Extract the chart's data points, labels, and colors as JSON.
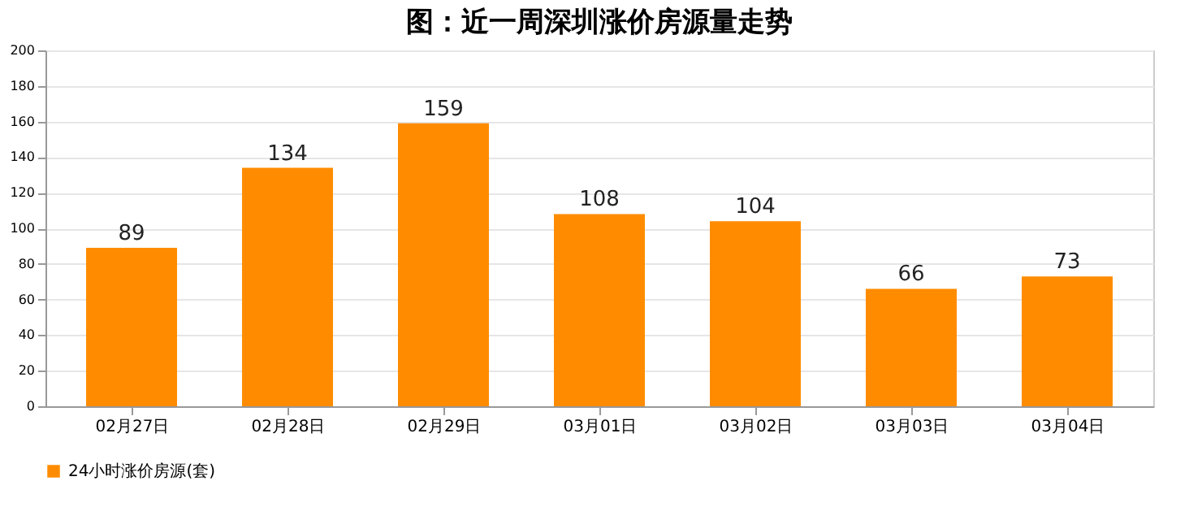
{
  "chart_data": {
    "type": "bar",
    "title": "图：近一周深圳涨价房源量走势",
    "categories": [
      "02月27日",
      "02月28日",
      "02月29日",
      "03月01日",
      "03月02日",
      "03月03日",
      "03月04日"
    ],
    "series": [
      {
        "name": "24小时涨价房源(套)",
        "color": "#ff8c00",
        "values": [
          89,
          134,
          159,
          108,
          104,
          66,
          73
        ]
      }
    ],
    "ylim": [
      0,
      200
    ],
    "yticks": [
      0,
      20,
      40,
      60,
      80,
      100,
      120,
      140,
      160,
      180,
      200
    ],
    "grid": "y",
    "legend": "bottom",
    "data_labels": true
  }
}
